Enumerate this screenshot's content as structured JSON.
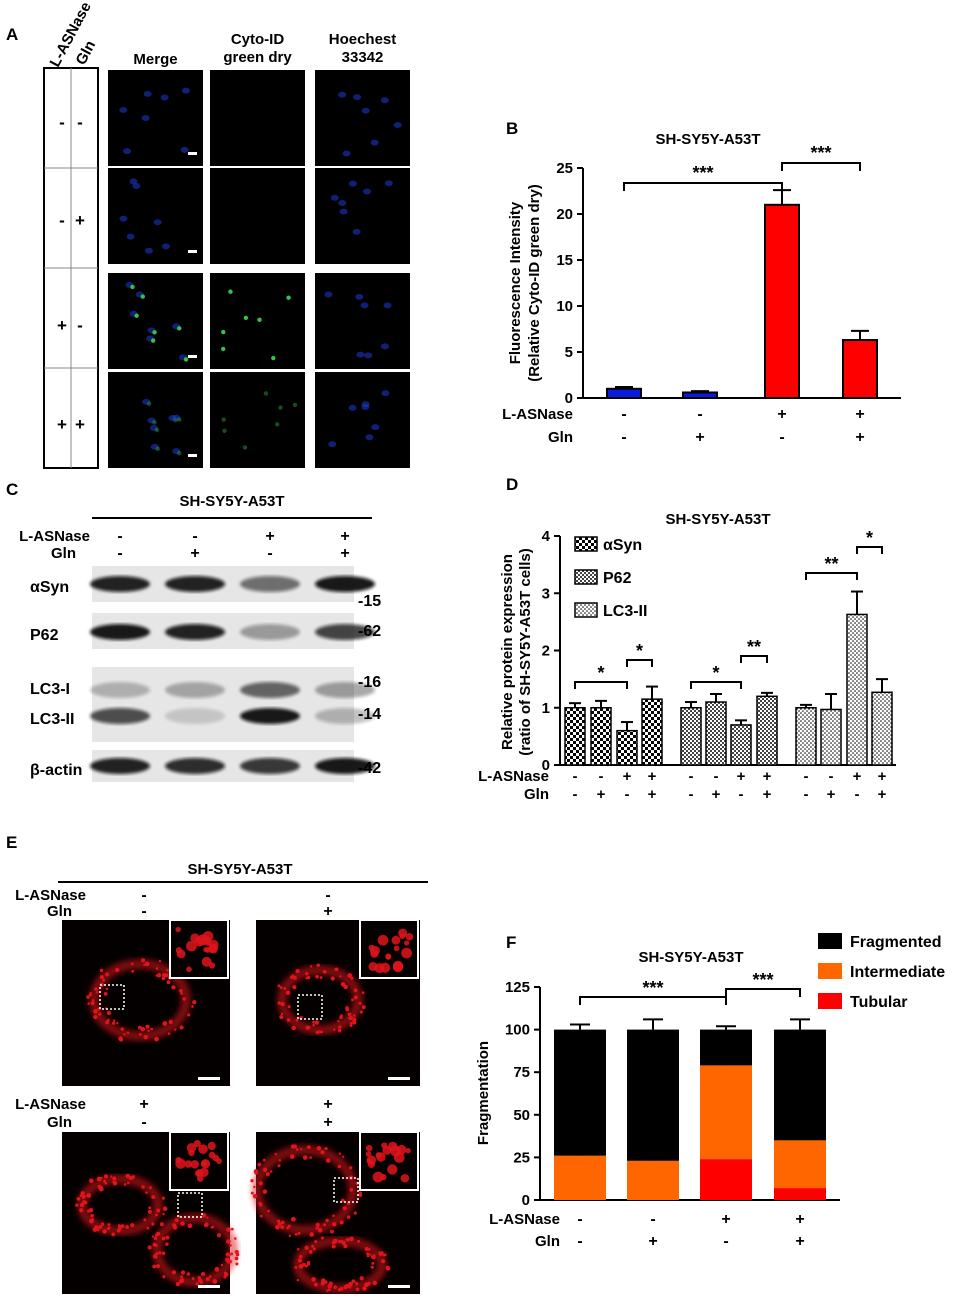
{
  "panel_letters": {
    "a": "A",
    "b": "B",
    "c": "C",
    "d": "D",
    "e": "E",
    "f": "F"
  },
  "common": {
    "cell_line": "SH-SY5Y-A53T",
    "l_asnase_label": "L-ASNase",
    "gln_label": "Gln",
    "l_asnase_signs": [
      "-",
      "-",
      "+",
      "+"
    ],
    "gln_signs": [
      "-",
      "+",
      "-",
      "+"
    ]
  },
  "panel_a": {
    "col_headers": [
      {
        "line1": "Merge",
        "line2": ""
      },
      {
        "line1": "Cyto-ID",
        "line2": "green dry"
      },
      {
        "line1": "Hoechest",
        "line2": "33342"
      }
    ],
    "row_signs": [
      {
        "l_asnase": "-",
        "gln": "-"
      },
      {
        "l_asnase": "-",
        "gln": "+"
      },
      {
        "l_asnase": "+",
        "gln": "-"
      },
      {
        "l_asnase": "+",
        "gln": "+"
      }
    ]
  },
  "panel_c": {
    "bands": [
      {
        "name": "αSyn",
        "mw": "-15"
      },
      {
        "name": "P62",
        "mw": "-62"
      },
      {
        "name": "LC3-I",
        "mw": "-16"
      },
      {
        "name": "LC3-II",
        "mw": "-14"
      },
      {
        "name": "β-actin",
        "mw": "-42"
      }
    ]
  },
  "panel_e": {
    "colors": {
      "image_bg": "#050000",
      "stain": "#e0141c"
    }
  },
  "chart_data": [
    {
      "panel": "B",
      "type": "bar",
      "title": "SH-SY5Y-A53T",
      "ylabel": "Fluorescence Intensity",
      "ylabel2": "(Relative Cyto-ID green dry)",
      "ylim": [
        0,
        25
      ],
      "yticks": [
        "0",
        "5",
        "10",
        "15",
        "20",
        "25"
      ],
      "categories": [
        "-/-",
        "-/+",
        "+/-",
        "+/+"
      ],
      "values": [
        1.0,
        0.6,
        21.0,
        6.3
      ],
      "errors": [
        0.2,
        0.15,
        1.6,
        1.0
      ],
      "colors": [
        "#0a1adf",
        "#0a1adf",
        "#ff0000",
        "#ff0000"
      ],
      "annotations": [
        {
          "from": 0,
          "to": 2,
          "text": "***"
        },
        {
          "from": 2,
          "to": 3,
          "text": "***"
        }
      ]
    },
    {
      "panel": "D",
      "type": "bar",
      "title": "SH-SY5Y-A53T",
      "ylabel": "Relative protein expression",
      "ylabel2": "(ratio of SH-SY5Y-A53T cells)",
      "ylim": [
        0,
        4
      ],
      "yticks": [
        "0",
        "1",
        "2",
        "3",
        "4"
      ],
      "legend": [
        "αSyn",
        "P62",
        "LC3-II"
      ],
      "series": [
        {
          "name": "αSyn",
          "values": [
            1.0,
            1.0,
            0.6,
            1.15
          ],
          "errors": [
            0.08,
            0.12,
            0.15,
            0.22
          ],
          "annotations": [
            {
              "from": 0,
              "to": 2,
              "text": "*"
            },
            {
              "from": 2,
              "to": 3,
              "text": "*"
            }
          ]
        },
        {
          "name": "P62",
          "values": [
            1.0,
            1.1,
            0.7,
            1.2
          ],
          "errors": [
            0.1,
            0.14,
            0.08,
            0.06
          ],
          "annotations": [
            {
              "from": 0,
              "to": 2,
              "text": "*"
            },
            {
              "from": 2,
              "to": 3,
              "text": "**"
            }
          ]
        },
        {
          "name": "LC3-II",
          "values": [
            1.0,
            0.97,
            2.63,
            1.27
          ],
          "errors": [
            0.05,
            0.27,
            0.4,
            0.23
          ],
          "annotations": [
            {
              "from": 0,
              "to": 2,
              "text": "**"
            },
            {
              "from": 2,
              "to": 3,
              "text": "*"
            }
          ]
        }
      ]
    },
    {
      "panel": "F",
      "type": "bar",
      "stacked": true,
      "title": "SH-SY5Y-A53T",
      "ylabel": "Fragmentation",
      "ylim": [
        0,
        125
      ],
      "yticks": [
        "0",
        "25",
        "50",
        "75",
        "100",
        "125"
      ],
      "legend_position": "top-right",
      "series": [
        {
          "name": "Tubular",
          "color": "#ff0000",
          "values": [
            0,
            0,
            24,
            7
          ],
          "errors": [
            0,
            0,
            8,
            1
          ]
        },
        {
          "name": "Intermediate",
          "color": "#ff6600",
          "values": [
            26,
            23,
            55,
            28
          ],
          "errors": [
            4,
            6,
            4,
            5
          ]
        },
        {
          "name": "Fragmented",
          "color": "#000000",
          "values": [
            74,
            77,
            21,
            65
          ],
          "errors": [
            3,
            6,
            2,
            6
          ]
        }
      ],
      "annotations": [
        {
          "from": 0,
          "to": 2,
          "text": "***"
        },
        {
          "from": 2,
          "to": 3,
          "text": "***"
        }
      ]
    }
  ]
}
